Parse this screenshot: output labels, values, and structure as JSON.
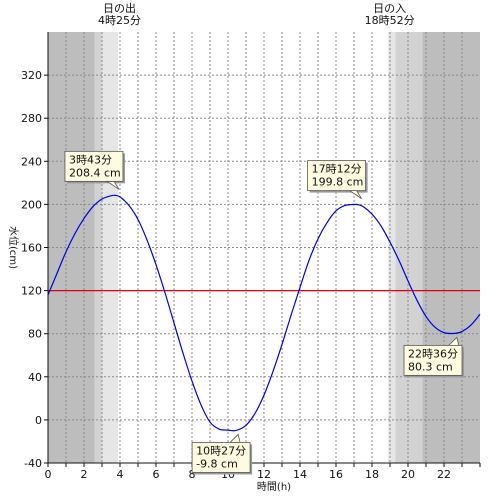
{
  "chart_data": {
    "type": "line",
    "xlabel": "時間(h)",
    "ylabel": "水位(cm)",
    "xlim": [
      0,
      24
    ],
    "ylim": [
      -40,
      360
    ],
    "x_ticks": [
      0,
      2,
      4,
      6,
      8,
      10,
      12,
      14,
      16,
      18,
      20,
      22
    ],
    "y_ticks": [
      -40,
      0,
      40,
      80,
      120,
      160,
      200,
      240,
      280,
      320
    ],
    "grid": true,
    "sunrise": {
      "label": "日の出",
      "time": "4時25分",
      "hour": 4.42
    },
    "sunset": {
      "label": "日の入",
      "time": "18時52分",
      "hour": 18.87
    },
    "shading": {
      "dark": [
        [
          0,
          2.6
        ],
        [
          20.8,
          24
        ]
      ],
      "medium": [
        [
          2.6,
          3.0
        ],
        [
          19.3,
          20.8
        ]
      ],
      "light": [
        [
          3.0,
          3.9
        ],
        [
          18.9,
          19.3
        ]
      ]
    },
    "reference_line": {
      "y": 120,
      "color": "#e00000"
    },
    "series": [
      {
        "color": "#0000dd",
        "x": [
          0,
          0.5,
          1,
          1.5,
          2,
          2.5,
          3,
          3.5,
          3.72,
          4,
          4.5,
          5,
          5.5,
          6,
          6.5,
          7,
          7.5,
          8,
          8.5,
          9,
          9.5,
          10,
          10.45,
          11,
          11.5,
          12,
          12.5,
          13,
          13.5,
          14,
          14.5,
          15,
          15.5,
          16,
          16.5,
          17,
          17.2,
          17.5,
          18,
          18.5,
          19,
          19.5,
          20,
          20.5,
          21,
          21.5,
          22,
          22.6,
          23,
          23.5,
          24
        ],
        "y": [
          116,
          136,
          156,
          173,
          187,
          198,
          205,
          208,
          208.4,
          207,
          199,
          186,
          167,
          144,
          118,
          90,
          62,
          36,
          14,
          -2,
          -8.5,
          -9.5,
          -9.8,
          -5,
          6,
          23,
          45,
          70,
          97,
          123,
          148,
          168,
          183,
          194,
          199,
          200,
          199.8,
          198,
          191,
          180,
          165,
          148,
          129,
          111,
          96,
          86,
          81,
          80.3,
          82,
          88,
          98
        ]
      }
    ],
    "annotations": [
      {
        "time": "3時43分",
        "value": "208.4 cm",
        "x": 3.72,
        "y": 208.4,
        "pos": "above"
      },
      {
        "time": "10時27分",
        "value": "-9.8 cm",
        "x": 10.45,
        "y": -9.8,
        "pos": "below"
      },
      {
        "time": "17時12分",
        "value": "199.8 cm",
        "x": 17.2,
        "y": 199.8,
        "pos": "above"
      },
      {
        "time": "22時36分",
        "value": "80.3 cm",
        "x": 22.6,
        "y": 80.3,
        "pos": "below"
      }
    ]
  }
}
